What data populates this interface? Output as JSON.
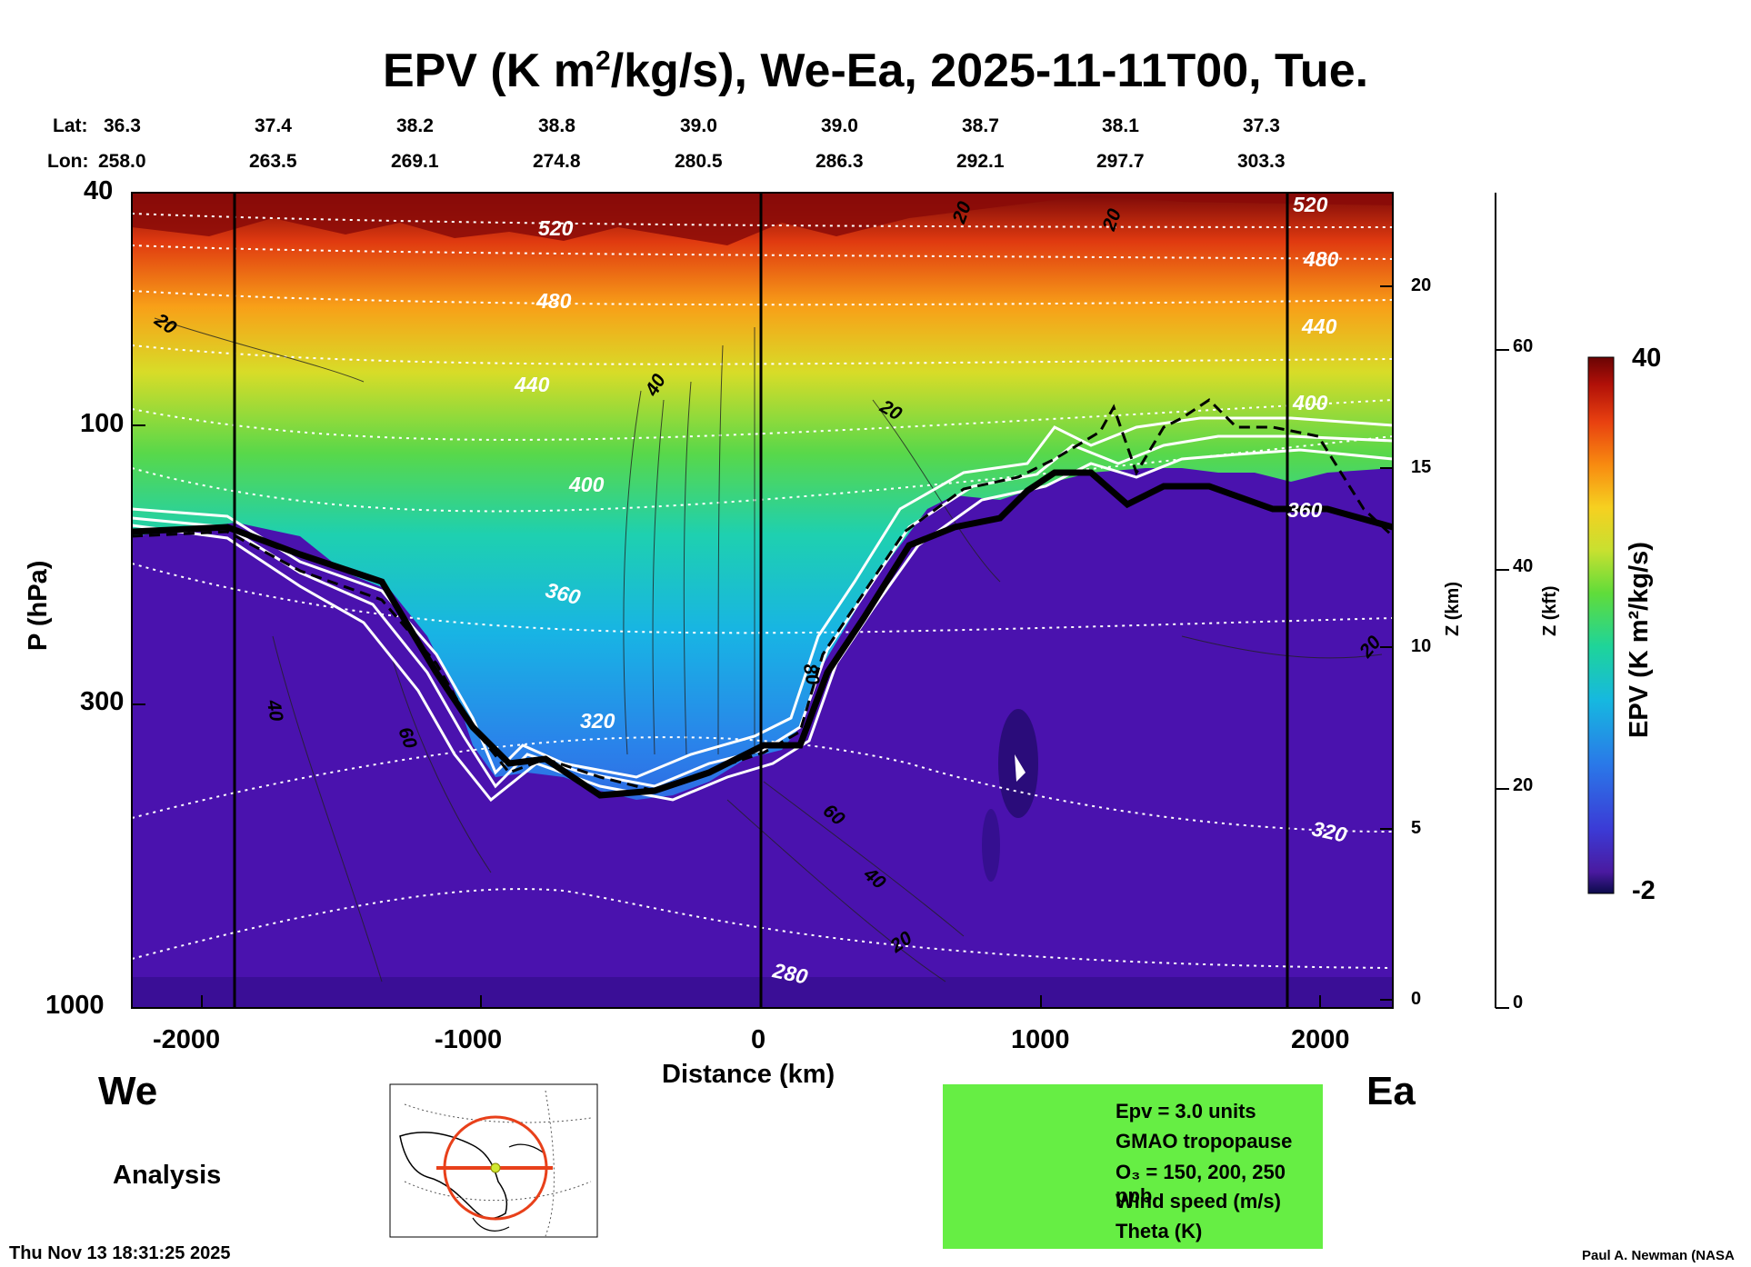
{
  "title": {
    "prefix": "EPV (K m",
    "sup": "2",
    "suffix": "/kg/s), We-Ea, 2025-11-11T00, Tue."
  },
  "latlon": {
    "lat_label": "Lat:",
    "lon_label": "Lon:",
    "lats": [
      "36.3",
      "37.4",
      "38.2",
      "38.8",
      "39.0",
      "39.0",
      "38.7",
      "38.1",
      "37.3"
    ],
    "lons": [
      "258.0",
      "263.5",
      "269.1",
      "274.8",
      "280.5",
      "286.3",
      "292.1",
      "297.7",
      "303.3"
    ]
  },
  "labels": {
    "west": "We",
    "east": "Ea",
    "analysis": "Analysis",
    "timestamp": "Thu Nov 13 18:31:25 2025",
    "credit": "Paul A. Newman (NASA"
  },
  "legend": {
    "items": [
      {
        "text": "Epv = 3.0 units",
        "style": "dashed"
      },
      {
        "text": "GMAO tropopause",
        "style": "thick"
      },
      {
        "text": "O₃ = 150, 200, 250 ppb",
        "style": "white"
      },
      {
        "text": "Wind speed (m/s)",
        "style": "thin"
      },
      {
        "text": "Theta (K)",
        "style": "dotted"
      }
    ]
  },
  "colorbar": {
    "label": "EPV (K m²/kg/s)",
    "max": "40",
    "min": "-2"
  },
  "chart_data": {
    "type": "heatmap",
    "title": "EPV (K m²/kg/s), We-Ea, 2025-11-11T00, Tue.",
    "xlabel": "Distance (km)",
    "ylabel": "P (hPa)",
    "y2label": "Z (km)",
    "y3label": "Z (kft)",
    "xlim": [
      -2250,
      2250
    ],
    "ylim": [
      1000,
      40
    ],
    "y_scale": "log",
    "x_ticks": [
      "-2000",
      "-1000",
      "0",
      "1000",
      "2000"
    ],
    "y_ticks": [
      "1000",
      "300",
      "100",
      "40"
    ],
    "z_km_ticks": [
      "0",
      "5",
      "10",
      "15",
      "20"
    ],
    "z_kft_ticks": [
      "0",
      "20",
      "40",
      "60"
    ],
    "colorbar_range": [
      -2,
      40
    ],
    "theta_labels": [
      "520",
      "480",
      "440",
      "400",
      "360",
      "320",
      "280",
      "520",
      "480",
      "440",
      "400",
      "360",
      "320"
    ],
    "wind_labels": [
      "20",
      "20",
      "40",
      "60",
      "80",
      "60",
      "40",
      "20",
      "20",
      "40",
      "20",
      "20"
    ],
    "tropopause_km": [
      -2200,
      -1850,
      -1500,
      -1200,
      -1050,
      -900,
      -700,
      -500,
      -300,
      -100,
      100,
      250,
      400,
      600,
      800,
      1000,
      1300,
      1600,
      1900,
      2200
    ],
    "tropopause_hPa": [
      180,
      170,
      190,
      220,
      290,
      340,
      350,
      370,
      360,
      330,
      320,
      250,
      190,
      180,
      170,
      150,
      145,
      145,
      145,
      160
    ]
  }
}
